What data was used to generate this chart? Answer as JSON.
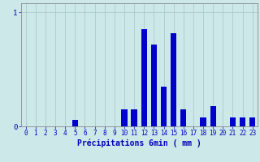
{
  "xlabel": "Précipitations 6min ( mm )",
  "bar_color": "#0000cc",
  "background_color": "#cce8e8",
  "grid_color": "#aacccc",
  "axis_color": "#888888",
  "text_color": "#0000bb",
  "ylim": [
    0,
    1.08
  ],
  "xlim": [
    -0.5,
    23.5
  ],
  "values": [
    0,
    0,
    0,
    0,
    0,
    0.06,
    0,
    0,
    0,
    0,
    0.15,
    0.15,
    0.85,
    0.72,
    0.35,
    0.82,
    0.15,
    0,
    0.08,
    0.18,
    0,
    0.08,
    0.08,
    0.08
  ],
  "yticks": [
    0,
    1
  ],
  "xticks": [
    0,
    1,
    2,
    3,
    4,
    5,
    6,
    7,
    8,
    9,
    10,
    11,
    12,
    13,
    14,
    15,
    16,
    17,
    18,
    19,
    20,
    21,
    22,
    23
  ],
  "bar_width": 0.6,
  "xlabel_fontsize": 7,
  "tick_fontsize": 5.5,
  "ytick_fontsize": 6.5
}
